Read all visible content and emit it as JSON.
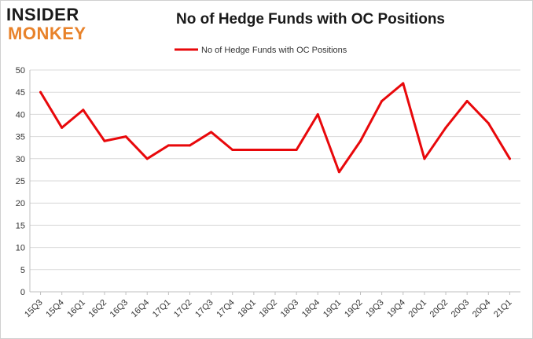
{
  "logo": {
    "line1": "INSIDER",
    "line2": "MONKEY"
  },
  "colors": {
    "series": "#e8080b",
    "grid": "#d9d9d9",
    "logo_accent": "#e8822a"
  },
  "chart_data": {
    "type": "line",
    "title": "No of Hedge Funds with OC Positions",
    "xlabel": "",
    "ylabel": "",
    "ylim": [
      0,
      50
    ],
    "yticks": [
      0,
      5,
      10,
      15,
      20,
      25,
      30,
      35,
      40,
      45,
      50
    ],
    "grid": true,
    "legend_position": "top-center",
    "categories": [
      "15Q3",
      "15Q4",
      "16Q1",
      "16Q2",
      "16Q3",
      "16Q4",
      "17Q1",
      "17Q2",
      "17Q3",
      "17Q4",
      "18Q1",
      "18Q2",
      "18Q3",
      "18Q4",
      "19Q1",
      "19Q2",
      "19Q3",
      "19Q4",
      "20Q1",
      "20Q2",
      "20Q3",
      "20Q4",
      "21Q1"
    ],
    "series": [
      {
        "name": "No of Hedge Funds with OC Positions",
        "values": [
          45,
          37,
          41,
          34,
          35,
          30,
          33,
          33,
          36,
          32,
          32,
          32,
          32,
          40,
          27,
          34,
          43,
          47,
          30,
          37,
          43,
          38,
          30
        ]
      }
    ]
  }
}
